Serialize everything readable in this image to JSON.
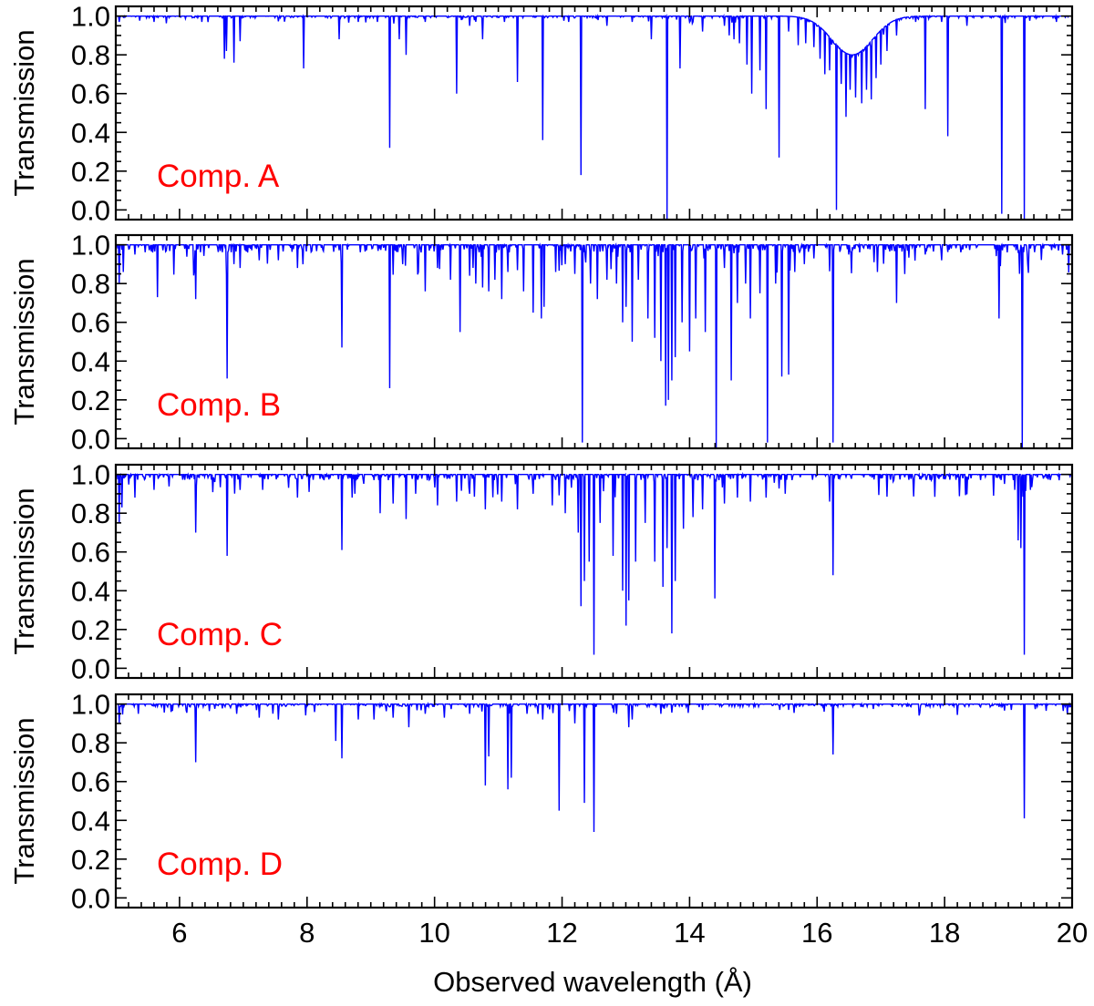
{
  "chart_data": {
    "type": "line",
    "xlabel": "Observed wavelength (Å)",
    "ylabel": "Transmission",
    "xlim": [
      5,
      20
    ],
    "ylim": [
      -0.05,
      1.05
    ],
    "x_ticks": [
      6,
      8,
      10,
      12,
      14,
      16,
      18,
      20
    ],
    "x_minor_step": 0.2,
    "y_ticks": [
      0.0,
      0.2,
      0.4,
      0.6,
      0.8,
      1.0
    ],
    "y_tick_labels": [
      "0.0",
      "0.2",
      "0.4",
      "0.6",
      "0.8",
      "1.0"
    ],
    "y_minor_step": 0.05,
    "line_color": "#0000ff",
    "label_color": "#ff0000",
    "panels": [
      {
        "label": "Comp. A",
        "continuum": 1.0,
        "lines": [
          [
            5.05,
            0.97
          ],
          [
            5.6,
            0.97
          ],
          [
            6.35,
            0.97
          ],
          [
            6.7,
            0.78
          ],
          [
            6.74,
            0.82
          ],
          [
            6.85,
            0.76
          ],
          [
            6.95,
            0.87
          ],
          [
            7.95,
            0.73
          ],
          [
            8.5,
            0.88
          ],
          [
            8.8,
            0.97
          ],
          [
            9.1,
            0.97
          ],
          [
            9.3,
            0.32
          ],
          [
            9.45,
            0.88
          ],
          [
            9.55,
            0.8
          ],
          [
            9.85,
            0.97
          ],
          [
            10.35,
            0.6
          ],
          [
            10.55,
            0.95
          ],
          [
            10.75,
            0.88
          ],
          [
            11.1,
            0.97
          ],
          [
            11.3,
            0.66
          ],
          [
            11.7,
            0.36
          ],
          [
            12.1,
            0.97
          ],
          [
            12.3,
            0.18
          ],
          [
            12.7,
            0.95
          ],
          [
            13.1,
            0.97
          ],
          [
            13.4,
            0.88
          ],
          [
            13.65,
            -0.05
          ],
          [
            13.85,
            0.73
          ],
          [
            14.05,
            0.97
          ],
          [
            14.2,
            0.92
          ],
          [
            14.55,
            0.95
          ],
          [
            14.62,
            0.9
          ],
          [
            14.7,
            0.88
          ],
          [
            14.78,
            0.86
          ],
          [
            14.9,
            0.75
          ],
          [
            14.98,
            0.6
          ],
          [
            15.1,
            0.72
          ],
          [
            15.2,
            0.52
          ],
          [
            15.4,
            0.27
          ],
          [
            15.55,
            0.92
          ],
          [
            15.7,
            0.85
          ],
          [
            15.82,
            0.86
          ],
          [
            15.95,
            0.84
          ],
          [
            16.05,
            0.78
          ],
          [
            16.12,
            0.7
          ],
          [
            16.2,
            0.72
          ],
          [
            16.3,
            0.0
          ],
          [
            16.38,
            0.65
          ],
          [
            16.45,
            0.48
          ],
          [
            16.52,
            0.62
          ],
          [
            16.6,
            0.58
          ],
          [
            16.7,
            0.55
          ],
          [
            16.78,
            0.62
          ],
          [
            16.85,
            0.57
          ],
          [
            16.92,
            0.68
          ],
          [
            17.0,
            0.75
          ],
          [
            17.1,
            0.82
          ],
          [
            17.25,
            0.9
          ],
          [
            17.55,
            0.97
          ],
          [
            17.7,
            0.52
          ],
          [
            17.95,
            0.97
          ],
          [
            18.05,
            0.38
          ],
          [
            18.35,
            0.95
          ],
          [
            18.9,
            -0.02
          ],
          [
            19.25,
            -0.05
          ],
          [
            19.75,
            0.97
          ]
        ],
        "trough": {
          "center": 16.55,
          "width": 0.45,
          "depth": 0.2
        }
      },
      {
        "label": "Comp. B",
        "continuum": 1.0,
        "lines": [
          [
            5.05,
            0.8
          ],
          [
            5.12,
            0.86
          ],
          [
            5.3,
            0.95
          ],
          [
            5.65,
            0.73
          ],
          [
            6.25,
            0.72
          ],
          [
            6.75,
            0.31
          ],
          [
            6.85,
            0.9
          ],
          [
            6.95,
            0.88
          ],
          [
            7.25,
            0.92
          ],
          [
            7.55,
            0.92
          ],
          [
            7.85,
            0.88
          ],
          [
            8.55,
            0.47
          ],
          [
            9.3,
            0.26
          ],
          [
            9.5,
            0.9
          ],
          [
            9.75,
            0.86
          ],
          [
            9.85,
            0.76
          ],
          [
            10.05,
            0.88
          ],
          [
            10.25,
            0.82
          ],
          [
            10.4,
            0.55
          ],
          [
            10.55,
            0.84
          ],
          [
            10.65,
            0.8
          ],
          [
            10.75,
            0.78
          ],
          [
            10.85,
            0.76
          ],
          [
            10.95,
            0.82
          ],
          [
            11.05,
            0.72
          ],
          [
            11.15,
            0.86
          ],
          [
            11.4,
            0.76
          ],
          [
            11.55,
            0.65
          ],
          [
            11.68,
            0.62
          ],
          [
            11.72,
            0.68
          ],
          [
            11.9,
            0.86
          ],
          [
            12.05,
            0.9
          ],
          [
            12.2,
            0.85
          ],
          [
            12.32,
            -0.02
          ],
          [
            12.45,
            0.8
          ],
          [
            12.55,
            0.72
          ],
          [
            12.7,
            0.82
          ],
          [
            12.85,
            0.8
          ],
          [
            12.95,
            0.6
          ],
          [
            13.0,
            0.68
          ],
          [
            13.1,
            0.5
          ],
          [
            13.2,
            0.82
          ],
          [
            13.35,
            0.62
          ],
          [
            13.45,
            0.52
          ],
          [
            13.55,
            0.4
          ],
          [
            13.62,
            0.17
          ],
          [
            13.67,
            0.2
          ],
          [
            13.72,
            0.3
          ],
          [
            13.78,
            0.42
          ],
          [
            13.88,
            0.6
          ],
          [
            14.0,
            0.45
          ],
          [
            14.1,
            0.62
          ],
          [
            14.25,
            0.55
          ],
          [
            14.42,
            -0.05
          ],
          [
            14.55,
            0.88
          ],
          [
            14.65,
            0.3
          ],
          [
            14.75,
            0.7
          ],
          [
            14.88,
            0.8
          ],
          [
            14.95,
            0.62
          ],
          [
            15.1,
            0.75
          ],
          [
            15.22,
            -0.02
          ],
          [
            15.35,
            0.8
          ],
          [
            15.45,
            0.32
          ],
          [
            15.55,
            0.33
          ],
          [
            15.65,
            0.86
          ],
          [
            15.8,
            0.9
          ],
          [
            15.95,
            0.93
          ],
          [
            16.25,
            -0.02
          ],
          [
            16.5,
            0.95
          ],
          [
            16.95,
            0.86
          ],
          [
            17.25,
            0.7
          ],
          [
            17.7,
            0.95
          ],
          [
            17.95,
            0.92
          ],
          [
            18.85,
            0.62
          ],
          [
            19.22,
            -0.05
          ],
          [
            19.3,
            0.9
          ],
          [
            19.85,
            0.95
          ]
        ],
        "noise": 0.04
      },
      {
        "label": "Comp. C",
        "continuum": 1.0,
        "lines": [
          [
            5.05,
            0.75
          ],
          [
            5.1,
            0.83
          ],
          [
            5.3,
            0.88
          ],
          [
            5.6,
            0.92
          ],
          [
            6.25,
            0.7
          ],
          [
            6.75,
            0.58
          ],
          [
            6.95,
            0.92
          ],
          [
            7.3,
            0.92
          ],
          [
            7.85,
            0.88
          ],
          [
            8.55,
            0.61
          ],
          [
            8.75,
            0.9
          ],
          [
            9.15,
            0.8
          ],
          [
            9.35,
            0.85
          ],
          [
            9.55,
            0.77
          ],
          [
            9.7,
            0.9
          ],
          [
            10.05,
            0.84
          ],
          [
            10.35,
            0.86
          ],
          [
            10.55,
            0.9
          ],
          [
            10.8,
            0.82
          ],
          [
            11.05,
            0.86
          ],
          [
            11.3,
            0.82
          ],
          [
            11.55,
            0.9
          ],
          [
            11.85,
            0.84
          ],
          [
            12.05,
            0.8
          ],
          [
            12.25,
            0.7
          ],
          [
            12.3,
            0.32
          ],
          [
            12.35,
            0.45
          ],
          [
            12.42,
            0.55
          ],
          [
            12.5,
            0.07
          ],
          [
            12.6,
            0.75
          ],
          [
            12.8,
            0.58
          ],
          [
            12.95,
            0.4
          ],
          [
            13.0,
            0.22
          ],
          [
            13.05,
            0.35
          ],
          [
            13.15,
            0.55
          ],
          [
            13.3,
            0.75
          ],
          [
            13.45,
            0.55
          ],
          [
            13.58,
            0.42
          ],
          [
            13.65,
            0.62
          ],
          [
            13.72,
            0.18
          ],
          [
            13.78,
            0.45
          ],
          [
            13.9,
            0.72
          ],
          [
            14.05,
            0.78
          ],
          [
            14.2,
            0.82
          ],
          [
            14.4,
            0.36
          ],
          [
            14.55,
            0.85
          ],
          [
            14.75,
            0.88
          ],
          [
            14.95,
            0.86
          ],
          [
            15.2,
            0.88
          ],
          [
            15.5,
            0.9
          ],
          [
            16.25,
            0.48
          ],
          [
            16.2,
            0.86
          ],
          [
            17.2,
            0.97
          ],
          [
            19.1,
            0.92
          ],
          [
            19.15,
            0.66
          ],
          [
            19.2,
            0.62
          ],
          [
            19.25,
            0.07
          ],
          [
            19.35,
            0.92
          ],
          [
            19.8,
            0.97
          ]
        ],
        "noise": 0.03
      },
      {
        "label": "Comp. D",
        "continuum": 1.0,
        "lines": [
          [
            5.05,
            0.9
          ],
          [
            5.35,
            0.95
          ],
          [
            6.25,
            0.7
          ],
          [
            6.9,
            0.95
          ],
          [
            7.25,
            0.93
          ],
          [
            7.55,
            0.92
          ],
          [
            8.45,
            0.81
          ],
          [
            8.55,
            0.72
          ],
          [
            8.8,
            0.92
          ],
          [
            9.05,
            0.92
          ],
          [
            9.35,
            0.93
          ],
          [
            9.6,
            0.88
          ],
          [
            9.85,
            0.95
          ],
          [
            10.15,
            0.93
          ],
          [
            10.55,
            0.95
          ],
          [
            10.8,
            0.58
          ],
          [
            10.85,
            0.73
          ],
          [
            11.15,
            0.56
          ],
          [
            11.2,
            0.62
          ],
          [
            11.45,
            0.95
          ],
          [
            11.7,
            0.92
          ],
          [
            11.95,
            0.45
          ],
          [
            12.2,
            0.9
          ],
          [
            12.35,
            0.49
          ],
          [
            12.5,
            0.34
          ],
          [
            12.85,
            0.95
          ],
          [
            13.05,
            0.88
          ],
          [
            13.1,
            0.92
          ],
          [
            13.55,
            0.95
          ],
          [
            14.2,
            0.97
          ],
          [
            15.55,
            0.97
          ],
          [
            16.25,
            0.74
          ],
          [
            19.05,
            0.97
          ],
          [
            19.25,
            0.41
          ]
        ],
        "noise": 0.015
      }
    ]
  }
}
